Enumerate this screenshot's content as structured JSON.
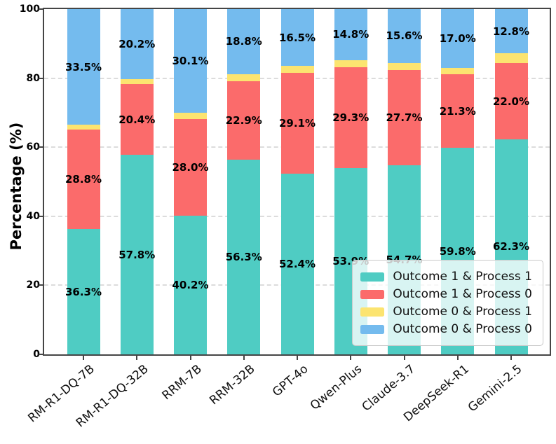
{
  "chart_data": {
    "type": "bar",
    "stacked": true,
    "title": "",
    "xlabel": "",
    "ylabel": "Percentage (%)",
    "ylim": [
      0,
      100
    ],
    "yticks": [
      0,
      20,
      40,
      60,
      80,
      100
    ],
    "grid": "horizontal-dashed",
    "legend_position": "lower-right",
    "value_suffix": "%",
    "categories": [
      "RM-R1-DQ-7B",
      "RM-R1-DQ-32B",
      "RRM-7B",
      "RRM-32B",
      "GPT-4o",
      "Qwen-Plus",
      "Claude-3.7",
      "DeepSeek-R1",
      "Gemini-2.5"
    ],
    "series": [
      {
        "name": "Outcome 1 & Process 1",
        "color": "#4FCCC3",
        "show_labels": true,
        "values": [
          36.3,
          57.8,
          40.2,
          56.3,
          52.4,
          53.9,
          54.7,
          59.8,
          62.3
        ]
      },
      {
        "name": "Outcome 1 & Process 0",
        "color": "#FB6B6B",
        "show_labels": true,
        "values": [
          28.8,
          20.4,
          28.0,
          22.9,
          29.1,
          29.3,
          27.7,
          21.3,
          22.0
        ]
      },
      {
        "name": "Outcome 0 & Process 1",
        "color": "#FCE470",
        "show_labels": false,
        "values": [
          1.4,
          1.6,
          1.7,
          2.0,
          2.0,
          2.0,
          2.0,
          1.9,
          2.9
        ]
      },
      {
        "name": "Outcome 0 & Process 0",
        "color": "#74BBEE",
        "show_labels": true,
        "values": [
          33.5,
          20.2,
          30.1,
          18.8,
          16.5,
          14.8,
          15.6,
          17.0,
          12.8
        ]
      }
    ]
  }
}
